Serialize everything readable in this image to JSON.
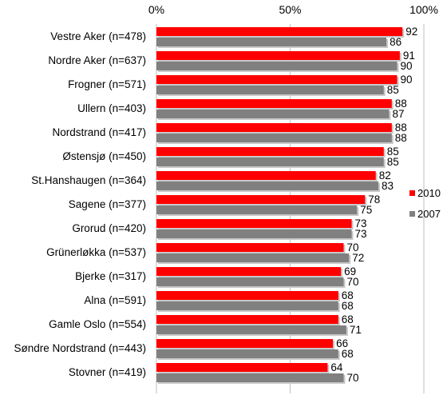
{
  "chart_data": {
    "type": "bar",
    "orientation": "horizontal",
    "categories": [
      "Vestre Aker (n=478)",
      "Nordre Aker (n=637)",
      "Frogner (n=571)",
      "Ullern (n=403)",
      "Nordstrand (n=417)",
      "Østensjø (n=450)",
      "St.Hanshaugen (n=364)",
      "Sagene (n=377)",
      "Grorud (n=420)",
      "Grünerløkka  (n=537)",
      "Bjerke (n=317)",
      "Alna (n=591)",
      "Gamle Oslo (n=554)",
      "Søndre Nordstrand (n=443)",
      "Stovner (n=419)"
    ],
    "series": [
      {
        "name": "2010",
        "color": "#ff0000",
        "values": [
          92,
          91,
          90,
          88,
          88,
          85,
          82,
          78,
          73,
          70,
          69,
          68,
          68,
          66,
          64
        ]
      },
      {
        "name": "2007",
        "color": "#808080",
        "values": [
          86,
          90,
          85,
          87,
          88,
          85,
          83,
          75,
          73,
          72,
          70,
          68,
          71,
          68,
          70
        ]
      }
    ],
    "xaxis": {
      "ticks": [
        "0%",
        "50%",
        "100%"
      ],
      "position": "top",
      "range": [
        0,
        100
      ]
    },
    "grid": true,
    "legend": "right"
  }
}
